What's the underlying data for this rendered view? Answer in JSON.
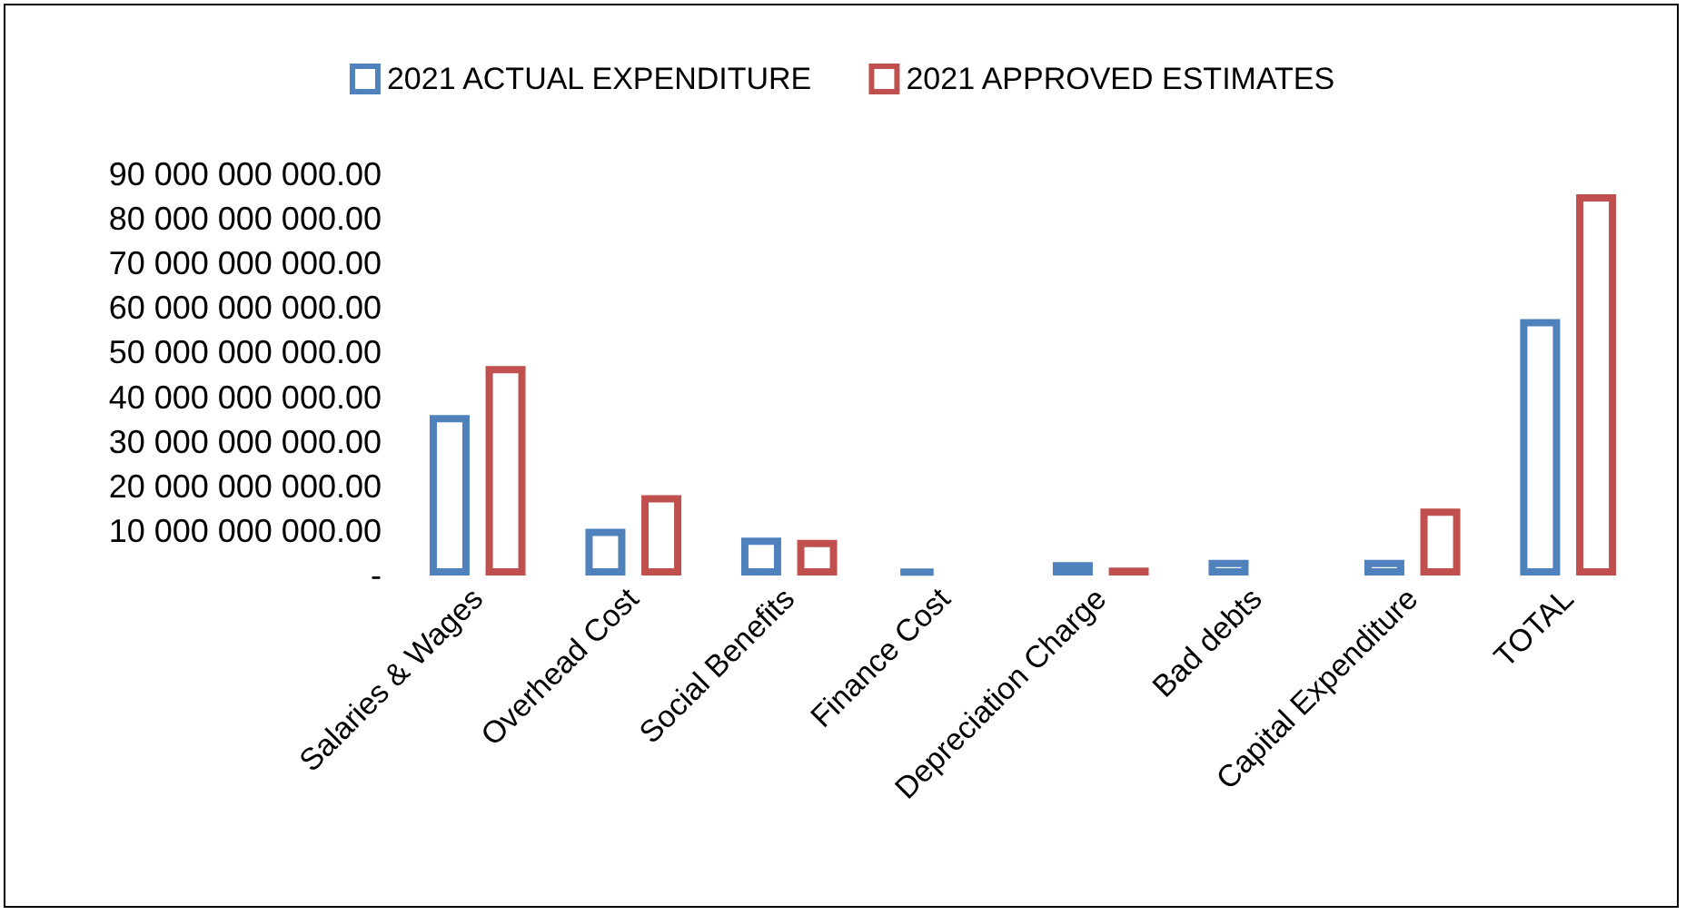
{
  "chart_data": {
    "type": "bar",
    "categories": [
      "Salaries & Wages",
      "Overhead Cost",
      "Social Benefits",
      "Finance Cost",
      "Depreciation Charge",
      "Bad debts",
      "Capital Expenditure",
      "TOTAL"
    ],
    "series": [
      {
        "name": "2021 ACTUAL EXPENDITURE",
        "color": "#4f81bd",
        "values": [
          36000000000,
          10500000000,
          8500000000,
          1500000000,
          3000000000,
          3500000000,
          3500000000,
          57500000000
        ]
      },
      {
        "name": "2021 APPROVED ESTIMATES",
        "color": "#c0504d",
        "values": [
          47000000000,
          18000000000,
          8000000000,
          null,
          1800000000,
          null,
          15000000000,
          85500000000
        ]
      }
    ],
    "ylim": [
      0,
      90000000000
    ],
    "yticks": [
      {
        "value": 0,
        "label": "-"
      },
      {
        "value": 10000000000,
        "label": "10 000 000 000.00"
      },
      {
        "value": 20000000000,
        "label": "20 000 000 000.00"
      },
      {
        "value": 30000000000,
        "label": "30 000 000 000.00"
      },
      {
        "value": 40000000000,
        "label": "40 000 000 000.00"
      },
      {
        "value": 50000000000,
        "label": "50 000 000 000.00"
      },
      {
        "value": 60000000000,
        "label": "60 000 000 000.00"
      },
      {
        "value": 70000000000,
        "label": "70 000 000 000.00"
      },
      {
        "value": 80000000000,
        "label": "80 000 000 000.00"
      },
      {
        "value": 90000000000,
        "label": "90 000 000 000.00"
      }
    ],
    "grid": false,
    "legend": "top"
  }
}
